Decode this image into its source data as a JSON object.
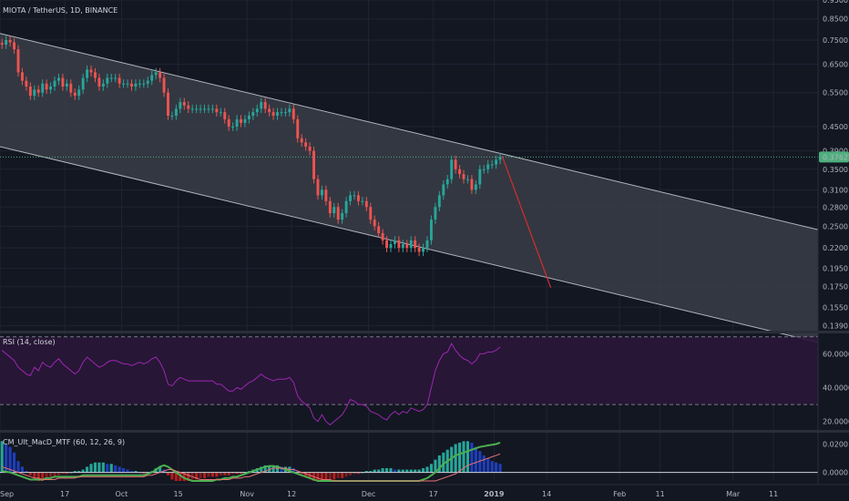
{
  "header": {
    "symbol_title": "MIOTA / TetherUS, 1D, BINANCE"
  },
  "colors": {
    "background": "#131722",
    "grid": "#1f2433",
    "up": "#26a69a",
    "down": "#ef5350",
    "channel_fill": "#3a3d46",
    "channel_line": "#b2b5be",
    "rsi_line": "#9c27b0",
    "rsi_band": "#2a1638",
    "price_label_bg": "#4caf7c",
    "projection": "#d32f2f"
  },
  "chart_data": [
    {
      "type": "candlestick",
      "name": "price",
      "ylabel": "",
      "y_scale": "log",
      "ylim": [
        0.135,
        0.95
      ],
      "y_ticks": [
        "0.9500",
        "0.8500",
        "0.7500",
        "0.6500",
        "0.5500",
        "0.4500",
        "0.3900",
        "0.3500",
        "0.3100",
        "0.2800",
        "0.2500",
        "0.2200",
        "0.1950",
        "0.1750",
        "0.1550",
        "0.1390"
      ],
      "current_price": "0.3762",
      "x_ticks": [
        "Sep",
        "17",
        "Oct",
        "15",
        "Nov",
        "12",
        "Dec",
        "17",
        "2019",
        "14",
        "Feb",
        "11",
        "Mar",
        "11"
      ],
      "x_tick_dates": [
        "2018-09-01",
        "2018-09-17",
        "2018-10-01",
        "2018-10-15",
        "2018-11-01",
        "2018-11-12",
        "2018-12-01",
        "2018-12-17",
        "2019-01-01",
        "2019-01-14",
        "2019-02-01",
        "2019-02-11",
        "2019-03-01",
        "2019-03-11"
      ],
      "xlim": [
        "2018-09-01",
        "2019-03-22"
      ],
      "closes": [
        0.73,
        0.75,
        0.74,
        0.71,
        0.62,
        0.59,
        0.57,
        0.54,
        0.56,
        0.55,
        0.58,
        0.56,
        0.57,
        0.59,
        0.6,
        0.57,
        0.58,
        0.55,
        0.54,
        0.56,
        0.6,
        0.63,
        0.62,
        0.6,
        0.57,
        0.58,
        0.6,
        0.6,
        0.6,
        0.58,
        0.58,
        0.58,
        0.57,
        0.58,
        0.58,
        0.58,
        0.59,
        0.61,
        0.62,
        0.6,
        0.55,
        0.48,
        0.48,
        0.5,
        0.52,
        0.51,
        0.5,
        0.5,
        0.5,
        0.5,
        0.5,
        0.5,
        0.5,
        0.49,
        0.49,
        0.47,
        0.45,
        0.45,
        0.47,
        0.46,
        0.47,
        0.48,
        0.49,
        0.5,
        0.52,
        0.5,
        0.49,
        0.48,
        0.49,
        0.49,
        0.49,
        0.5,
        0.47,
        0.42,
        0.41,
        0.4,
        0.39,
        0.33,
        0.3,
        0.31,
        0.29,
        0.27,
        0.28,
        0.26,
        0.27,
        0.29,
        0.3,
        0.3,
        0.29,
        0.29,
        0.28,
        0.26,
        0.25,
        0.24,
        0.23,
        0.22,
        0.225,
        0.23,
        0.22,
        0.225,
        0.22,
        0.23,
        0.22,
        0.215,
        0.22,
        0.23,
        0.26,
        0.28,
        0.3,
        0.32,
        0.33,
        0.37,
        0.35,
        0.34,
        0.33,
        0.33,
        0.31,
        0.32,
        0.35,
        0.35,
        0.36,
        0.36,
        0.37,
        0.3762
      ],
      "channel": {
        "upper": [
          [
            "2018-09-01",
            0.78
          ],
          [
            "2019-03-22",
            0.245
          ]
        ],
        "lower": [
          [
            "2018-09-01",
            0.4
          ],
          [
            "2019-03-22",
            0.126
          ]
        ]
      },
      "projection": [
        [
          "2019-01-03",
          0.378
        ],
        [
          "2019-01-15",
          0.174
        ]
      ],
      "dotted_price": 0.3762
    },
    {
      "type": "line",
      "name": "RSI (14, close)",
      "ylim": [
        15,
        72
      ],
      "y_ticks": [
        "60.0000",
        "40.0000",
        "20.0000"
      ],
      "bands": [
        70,
        30
      ],
      "values": [
        62,
        60,
        58,
        56,
        52,
        50,
        48,
        47,
        52,
        50,
        55,
        53,
        52,
        55,
        57,
        54,
        52,
        50,
        48,
        50,
        55,
        58,
        56,
        54,
        52,
        53,
        55,
        56,
        56,
        55,
        54,
        54,
        53,
        54,
        55,
        54,
        55,
        57,
        58,
        55,
        50,
        42,
        41,
        44,
        46,
        45,
        44,
        44,
        44,
        44,
        44,
        44,
        44,
        42,
        42,
        40,
        38,
        38,
        40,
        39,
        41,
        43,
        44,
        46,
        48,
        46,
        45,
        44,
        45,
        45,
        45,
        46,
        43,
        35,
        32,
        30,
        28,
        22,
        20,
        24,
        20,
        18,
        20,
        22,
        24,
        28,
        33,
        32,
        30,
        30,
        29,
        26,
        25,
        24,
        22,
        21,
        24,
        26,
        24,
        26,
        25,
        28,
        27,
        26,
        27,
        30,
        40,
        50,
        56,
        60,
        61,
        66,
        62,
        59,
        57,
        56,
        54,
        56,
        60,
        60,
        61,
        61,
        62,
        64
      ]
    },
    {
      "type": "bar",
      "name": "CM_Ult_MacD_MTF (60, 12, 26, 9)",
      "ylim": [
        -0.006,
        0.028
      ],
      "y_ticks": [
        "0.0200",
        "0.0000"
      ],
      "y_tick_values": [
        0.02,
        0.0
      ],
      "histogram": [
        0.022,
        0.02,
        0.018,
        0.014,
        0.008,
        0.004,
        0.001,
        -0.002,
        -0.004,
        -0.006,
        -0.006,
        -0.005,
        -0.004,
        -0.003,
        -0.002,
        -0.001,
        -0.001,
        0.0,
        0.001,
        0.001,
        0.002,
        0.004,
        0.006,
        0.007,
        0.007,
        0.007,
        0.006,
        0.006,
        0.005,
        0.004,
        0.003,
        0.002,
        0.001,
        0.001,
        0.0,
        -0.001,
        0.0,
        0.001,
        0.003,
        0.004,
        0.002,
        -0.002,
        -0.005,
        -0.006,
        -0.006,
        -0.006,
        -0.006,
        -0.005,
        -0.005,
        -0.004,
        -0.004,
        -0.003,
        -0.003,
        -0.003,
        -0.002,
        -0.002,
        -0.002,
        -0.001,
        -0.001,
        -0.001,
        0.0,
        0.001,
        0.002,
        0.003,
        0.004,
        0.005,
        0.005,
        0.005,
        0.005,
        0.004,
        0.004,
        0.004,
        0.003,
        0.001,
        -0.001,
        -0.003,
        -0.004,
        -0.006,
        -0.006,
        -0.006,
        -0.006,
        -0.005,
        -0.005,
        -0.004,
        -0.004,
        -0.003,
        -0.002,
        -0.001,
        -0.001,
        0.0,
        0.001,
        0.001,
        0.002,
        0.002,
        0.003,
        0.003,
        0.003,
        0.002,
        0.002,
        0.002,
        0.002,
        0.002,
        0.002,
        0.002,
        0.003,
        0.004,
        0.006,
        0.009,
        0.012,
        0.014,
        0.016,
        0.018,
        0.02,
        0.021,
        0.022,
        0.022,
        0.021,
        0.018,
        0.015,
        0.012,
        0.01,
        0.008,
        0.007,
        0.006
      ],
      "macd_line": [
        0.001,
        0.0005,
        0.0,
        -0.001,
        -0.002,
        -0.003,
        -0.004,
        -0.005,
        -0.005,
        -0.005,
        -0.005,
        -0.004,
        -0.004,
        -0.003,
        -0.003,
        -0.003,
        -0.003,
        -0.003,
        -0.003,
        -0.003,
        -0.002,
        -0.002,
        -0.002,
        -0.002,
        -0.002,
        -0.002,
        -0.002,
        -0.002,
        -0.002,
        -0.002,
        -0.002,
        -0.002,
        -0.002,
        -0.002,
        -0.002,
        -0.002,
        -0.001,
        0.0,
        0.002,
        0.004,
        0.005,
        0.004,
        0.002,
        0.0,
        -0.002,
        -0.004,
        -0.005,
        -0.006,
        -0.006,
        -0.006,
        -0.006,
        -0.006,
        -0.006,
        -0.005,
        -0.005,
        -0.004,
        -0.004,
        -0.003,
        -0.003,
        -0.002,
        -0.001,
        0.0,
        0.001,
        0.002,
        0.003,
        0.004,
        0.0045,
        0.0045,
        0.004,
        0.003,
        0.002,
        0.001,
        0.0,
        -0.001,
        -0.002,
        -0.003,
        -0.004,
        -0.005,
        -0.006,
        -0.006,
        -0.006,
        -0.006,
        -0.006,
        -0.006,
        -0.006,
        -0.006,
        -0.006,
        -0.006,
        -0.006,
        -0.006,
        -0.006,
        -0.006,
        -0.006,
        -0.006,
        -0.006,
        -0.006,
        -0.006,
        -0.006,
        -0.006,
        -0.006,
        -0.006,
        -0.006,
        -0.006,
        -0.006,
        -0.005,
        -0.004,
        -0.002,
        0.0,
        0.003,
        0.006,
        0.008,
        0.01,
        0.012,
        0.013,
        0.014,
        0.015,
        0.016,
        0.017,
        0.018,
        0.0185,
        0.019,
        0.0195,
        0.02,
        0.021
      ],
      "signal_line": [
        0.004,
        0.003,
        0.002,
        0.001,
        0.0,
        -0.001,
        -0.002,
        -0.003,
        -0.004,
        -0.004,
        -0.005,
        -0.005,
        -0.005,
        -0.005,
        -0.004,
        -0.004,
        -0.004,
        -0.004,
        -0.004,
        -0.003,
        -0.003,
        -0.003,
        -0.003,
        -0.003,
        -0.003,
        -0.003,
        -0.003,
        -0.003,
        -0.003,
        -0.003,
        -0.003,
        -0.003,
        -0.003,
        -0.003,
        -0.003,
        -0.003,
        -0.002,
        -0.002,
        -0.001,
        0.0,
        0.001,
        0.002,
        0.002,
        0.001,
        0.0,
        -0.001,
        -0.002,
        -0.003,
        -0.004,
        -0.005,
        -0.005,
        -0.005,
        -0.005,
        -0.005,
        -0.005,
        -0.005,
        -0.005,
        -0.004,
        -0.004,
        -0.004,
        -0.003,
        -0.003,
        -0.002,
        -0.001,
        0.0,
        0.001,
        0.002,
        0.003,
        0.003,
        0.003,
        0.003,
        0.002,
        0.002,
        0.001,
        0.0,
        -0.001,
        -0.002,
        -0.003,
        -0.004,
        -0.005,
        -0.005,
        -0.005,
        -0.006,
        -0.006,
        -0.006,
        -0.006,
        -0.006,
        -0.006,
        -0.006,
        -0.006,
        -0.006,
        -0.006,
        -0.006,
        -0.006,
        -0.006,
        -0.006,
        -0.006,
        -0.006,
        -0.006,
        -0.006,
        -0.006,
        -0.006,
        -0.006,
        -0.006,
        -0.006,
        -0.006,
        -0.006,
        -0.006,
        -0.005,
        -0.004,
        -0.003,
        -0.002,
        -0.001,
        0.001,
        0.003,
        0.005,
        0.006,
        0.007,
        0.008,
        0.009,
        0.01,
        0.011,
        0.012,
        0.013
      ]
    }
  ]
}
